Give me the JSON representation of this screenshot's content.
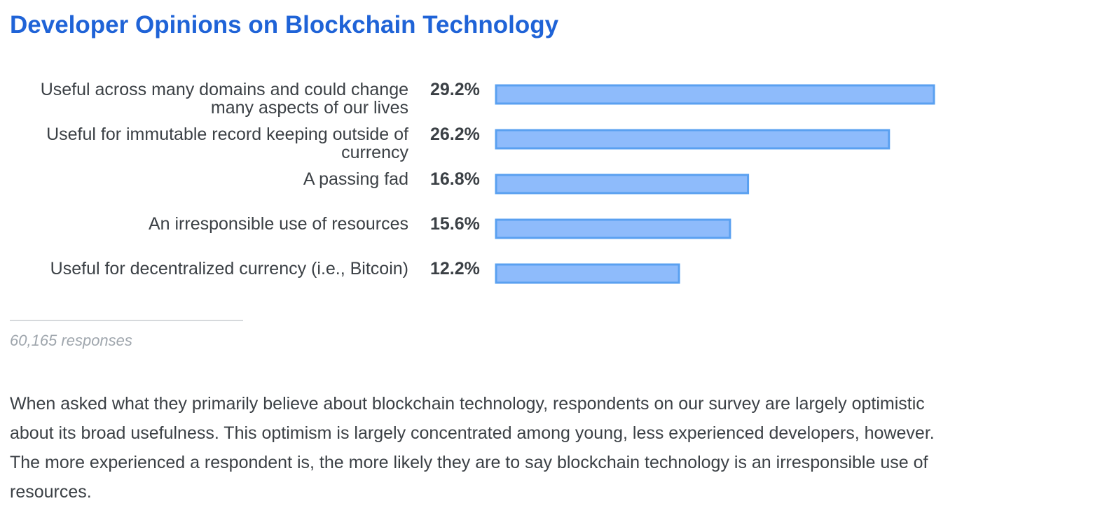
{
  "title": "Developer Opinions on Blockchain Technology",
  "colors": {
    "title": "#1f63d7",
    "bar_fill": "#8ebbfb",
    "bar_stroke": "#5aa0f0",
    "text": "#3b4045",
    "muted": "#9fa6ad"
  },
  "chart_data": {
    "type": "bar",
    "orientation": "horizontal",
    "title": "Developer Opinions on Blockchain Technology",
    "xlabel": "",
    "ylabel": "",
    "xlim": [
      0,
      35
    ],
    "categories": [
      [
        "Useful across many domains and could change",
        "many aspects of our lives"
      ],
      [
        "Useful for immutable record keeping outside of",
        "currency"
      ],
      [
        "A passing fad"
      ],
      [
        "An irresponsible use of resources"
      ],
      [
        "Useful for decentralized currency (i.e., Bitcoin)"
      ]
    ],
    "values": [
      29.2,
      26.2,
      16.8,
      15.6,
      12.2
    ],
    "value_labels": [
      "29.2%",
      "26.2%",
      "16.8%",
      "15.6%",
      "12.2%"
    ],
    "unit": "%"
  },
  "footer": {
    "responses": "60,165 responses"
  },
  "summary": "When asked what they primarily believe about blockchain technology, respondents on our survey are largely optimistic about its broad usefulness. This optimism is largely concentrated among young, less experienced developers, however. The more experienced a respondent is, the more likely they are to say blockchain technology is an irresponsible use of resources."
}
